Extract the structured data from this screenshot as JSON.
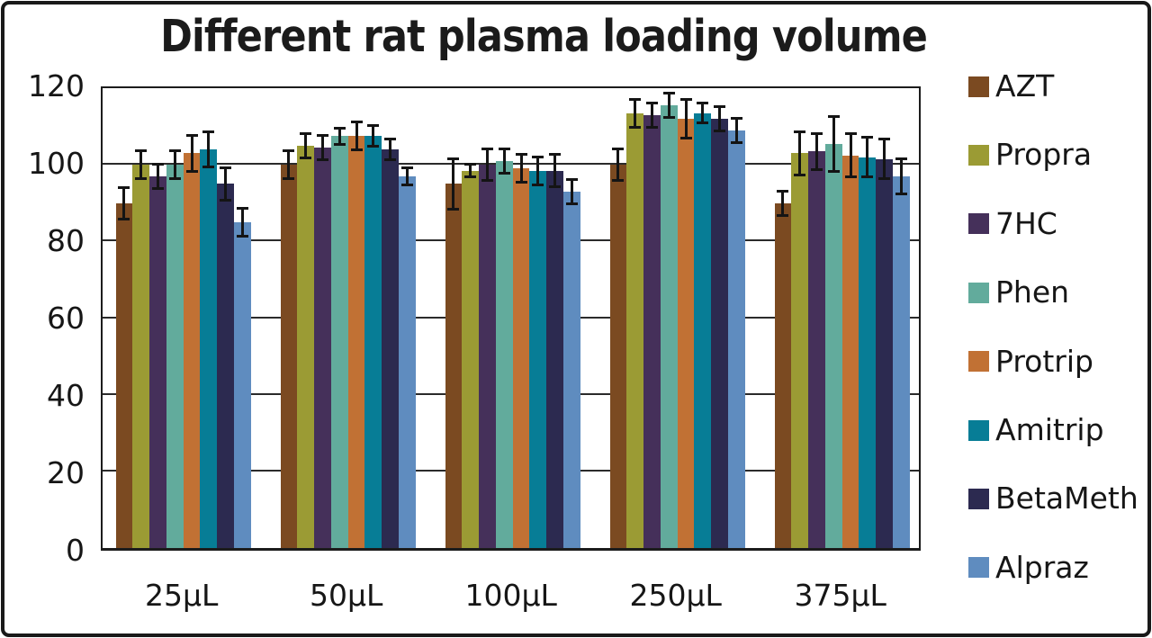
{
  "title": "Different rat plasma loading volume",
  "chart_data": {
    "type": "bar",
    "title": "Different rat plasma loading volume",
    "categories": [
      "25µL",
      "50µL",
      "100µL",
      "250µL",
      "375µL"
    ],
    "series": [
      {
        "name": "AZT",
        "color": "#7B4A21",
        "values": [
          90,
          100,
          95,
          100,
          90
        ],
        "errors": [
          4.5,
          4,
          7,
          4.5,
          3.5
        ]
      },
      {
        "name": "Propra",
        "color": "#9B9B34",
        "values": [
          100,
          105,
          98.5,
          113.5,
          103
        ],
        "errors": [
          4,
          3.5,
          2,
          4,
          6
        ]
      },
      {
        "name": "7HC",
        "color": "#45305A",
        "values": [
          97,
          104.5,
          100,
          113,
          103.5
        ],
        "errors": [
          3.5,
          3.5,
          4.5,
          3.5,
          5
        ]
      },
      {
        "name": "Phen",
        "color": "#62AB9C",
        "values": [
          100,
          107.5,
          101,
          115.5,
          105.5
        ],
        "errors": [
          4,
          2.5,
          3.5,
          3.5,
          7.5
        ]
      },
      {
        "name": "Protrip",
        "color": "#C17134",
        "values": [
          103,
          107.5,
          99,
          112,
          102.5
        ],
        "errors": [
          5,
          4,
          4,
          5.5,
          6
        ]
      },
      {
        "name": "Amitrip",
        "color": "#077D96",
        "values": [
          104,
          107.5,
          98.5,
          113.5,
          102
        ],
        "errors": [
          5,
          3,
          4,
          3,
          5.5
        ]
      },
      {
        "name": "BetaMeth",
        "color": "#2C2A50",
        "values": [
          95,
          104,
          98.5,
          112,
          101.5
        ],
        "errors": [
          4.5,
          3,
          4.5,
          3.5,
          5.5
        ]
      },
      {
        "name": "Alpraz",
        "color": "#5F8CBF",
        "values": [
          85,
          97,
          93,
          109,
          97
        ],
        "errors": [
          4,
          2.5,
          3.5,
          3.5,
          5
        ]
      }
    ],
    "ylim": [
      0,
      120
    ],
    "yticks": [
      0,
      20,
      40,
      60,
      80,
      100,
      120
    ],
    "grid": "horizontal",
    "error_bars": true,
    "legend_position": "right",
    "error_bar_color": "#141414"
  },
  "layout_colors": {
    "background": "#ffffff",
    "border": "#191919",
    "text": "#161616"
  }
}
